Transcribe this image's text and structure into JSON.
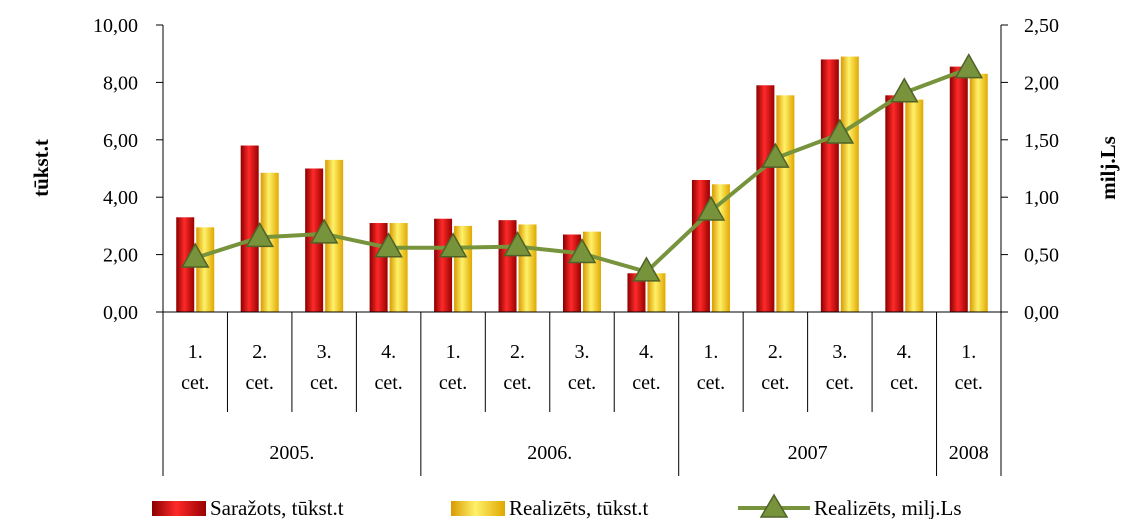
{
  "chart_data": {
    "type": "bar",
    "categories": [
      "1. cet.",
      "2. cet.",
      "3. cet.",
      "4. cet.",
      "1. cet.",
      "2. cet.",
      "3. cet.",
      "4. cet.",
      "1. cet.",
      "2. cet.",
      "3. cet.",
      "4. cet.",
      "1. cet."
    ],
    "category_lines": [
      [
        "1.",
        "cet."
      ],
      [
        "2.",
        "cet."
      ],
      [
        "3.",
        "cet."
      ],
      [
        "4.",
        "cet."
      ],
      [
        "1.",
        "cet."
      ],
      [
        "2.",
        "cet."
      ],
      [
        "3.",
        "cet."
      ],
      [
        "4.",
        "cet."
      ],
      [
        "1.",
        "cet."
      ],
      [
        "2.",
        "cet."
      ],
      [
        "3.",
        "cet."
      ],
      [
        "4.",
        "cet."
      ],
      [
        "1.",
        "cet."
      ]
    ],
    "groups": [
      {
        "label": "2005.",
        "count": 4
      },
      {
        "label": "2006.",
        "count": 4
      },
      {
        "label": "2007",
        "count": 4
      },
      {
        "label": "2008",
        "count": 1
      }
    ],
    "series": [
      {
        "name": "Saražots, tūkst.t",
        "type": "bar",
        "axis": "left",
        "color": "#c00000",
        "values": [
          3.3,
          5.8,
          5.0,
          3.1,
          3.25,
          3.2,
          2.7,
          1.35,
          4.6,
          7.9,
          8.8,
          7.55,
          8.55
        ]
      },
      {
        "name": "Realizēts, tūkst.t",
        "type": "bar",
        "axis": "left",
        "color": "#ffc000",
        "values": [
          2.95,
          4.85,
          5.3,
          3.1,
          3.0,
          3.05,
          2.8,
          1.35,
          4.45,
          7.55,
          8.9,
          7.4,
          8.3
        ]
      },
      {
        "name": "Realizēts, milj.Ls",
        "type": "line",
        "axis": "right",
        "color": "#77933c",
        "values": [
          0.47,
          0.65,
          0.68,
          0.56,
          0.56,
          0.57,
          0.51,
          0.35,
          0.88,
          1.34,
          1.55,
          1.91,
          2.12
        ]
      }
    ],
    "ylabel_left": "tūkst.t",
    "ylabel_right": "milj.Ls",
    "ylim_left": [
      0,
      10
    ],
    "ylim_right": [
      0,
      2.5
    ],
    "yticks_left": [
      "0,00",
      "2,00",
      "4,00",
      "6,00",
      "8,00",
      "10,00"
    ],
    "yticks_right": [
      "0,00",
      "0,50",
      "1,00",
      "1,50",
      "2,00",
      "2,50"
    ],
    "legend_position": "bottom",
    "grid": false
  }
}
